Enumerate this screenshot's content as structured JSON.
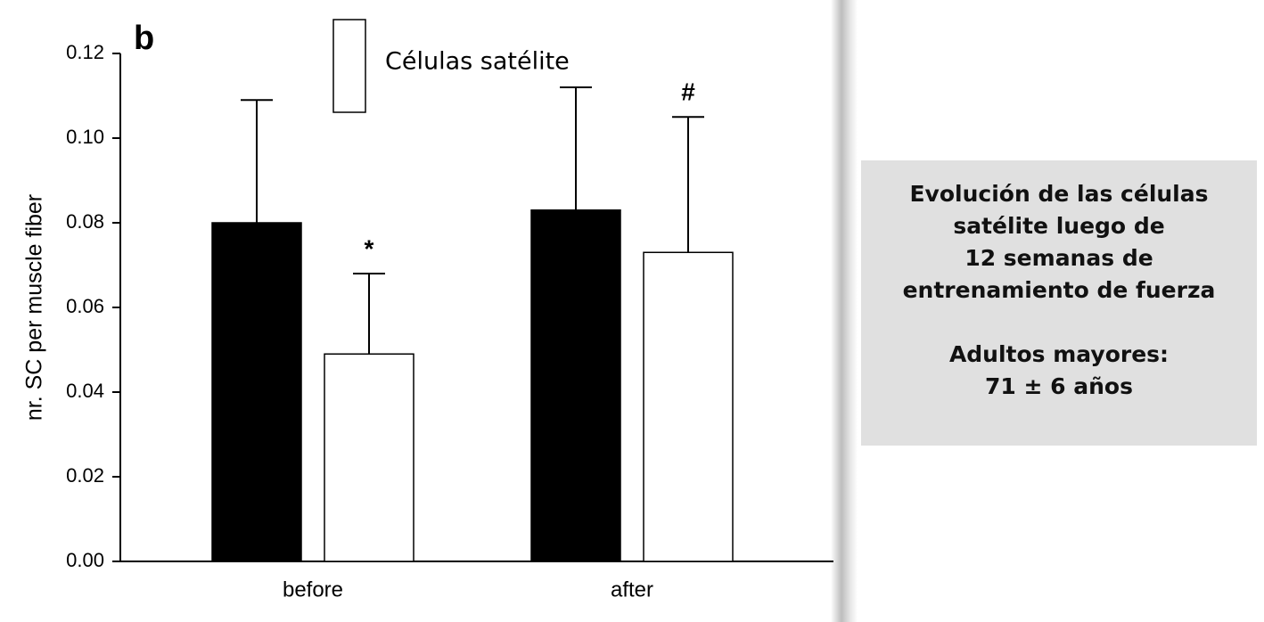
{
  "chart_data": {
    "type": "bar",
    "panel_label": "b",
    "y_label": "nr. SC per muscle fiber",
    "categories": [
      "before",
      "after"
    ],
    "series": [
      {
        "color": "#000000",
        "values": [
          0.08,
          0.083
        ],
        "errors": [
          0.029,
          0.029
        ]
      },
      {
        "name": "Células satélite",
        "color": "#ffffff",
        "values": [
          0.049,
          0.073
        ],
        "errors": [
          0.019,
          0.032
        ]
      }
    ],
    "annotations": [
      "*",
      "#"
    ],
    "ylim": [
      0,
      0.12
    ],
    "yticks": [
      {
        "value": 0,
        "label": "0.00"
      },
      {
        "value": 0.02,
        "label": "0.02"
      },
      {
        "value": 0.04,
        "label": "0.04"
      },
      {
        "value": 0.06,
        "label": "0.06"
      },
      {
        "value": 0.08,
        "label": "0.08"
      },
      {
        "value": 0.1,
        "label": "0.10"
      },
      {
        "value": 0.12,
        "label": "0.12"
      }
    ]
  },
  "side_note": {
    "paragraphs": [
      [
        "Evolución de las células",
        "satélite luego de",
        "12 semanas de",
        "entrenamiento de fuerza"
      ],
      [
        "Adultos mayores:",
        "71 ± 6 años"
      ]
    ]
  }
}
